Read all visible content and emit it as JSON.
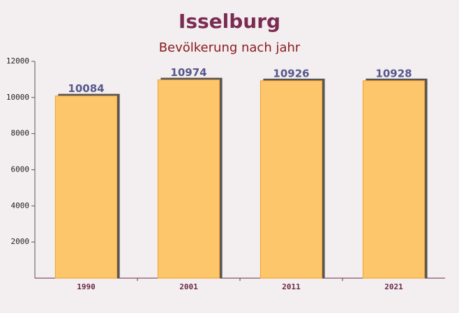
{
  "chart_data": {
    "type": "bar",
    "title": "Isselburg",
    "subtitle": "Bevölkerung nach jahr",
    "categories": [
      "1990",
      "2001",
      "2011",
      "2021"
    ],
    "values": [
      10084,
      10974,
      10926,
      10928
    ],
    "color": "#fdc66a",
    "ylim": [
      0,
      12000
    ],
    "yticks": [
      2000,
      4000,
      6000,
      8000,
      10000,
      12000
    ]
  }
}
